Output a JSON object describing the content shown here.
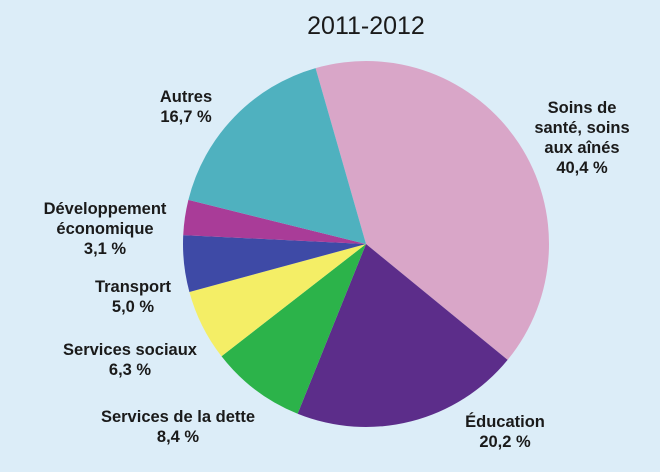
{
  "chart_data": {
    "type": "pie",
    "title": "2011-2012",
    "slices": [
      {
        "label": [
          "Soins de",
          "santé, soins",
          "aux aînés"
        ],
        "pct_label": "40,4 %",
        "value": 40.4,
        "color": "#d9a6c8"
      },
      {
        "label": [
          "Éducation"
        ],
        "pct_label": "20,2 %",
        "value": 20.2,
        "color": "#5c2d8a"
      },
      {
        "label": [
          "Services de la dette"
        ],
        "pct_label": "8,4 %",
        "value": 8.4,
        "color": "#2cb34a"
      },
      {
        "label": [
          "Services sociaux"
        ],
        "pct_label": "6,3 %",
        "value": 6.3,
        "color": "#f4ee66"
      },
      {
        "label": [
          "Transport"
        ],
        "pct_label": "5,0 %",
        "value": 5.0,
        "color": "#3e4aa6"
      },
      {
        "label": [
          "Développement",
          "économique"
        ],
        "pct_label": "3,1 %",
        "value": 3.1,
        "color": "#a93c98"
      },
      {
        "label": [
          "Autres"
        ],
        "pct_label": "16,7 %",
        "value": 16.7,
        "color": "#4fb1bf"
      }
    ]
  }
}
